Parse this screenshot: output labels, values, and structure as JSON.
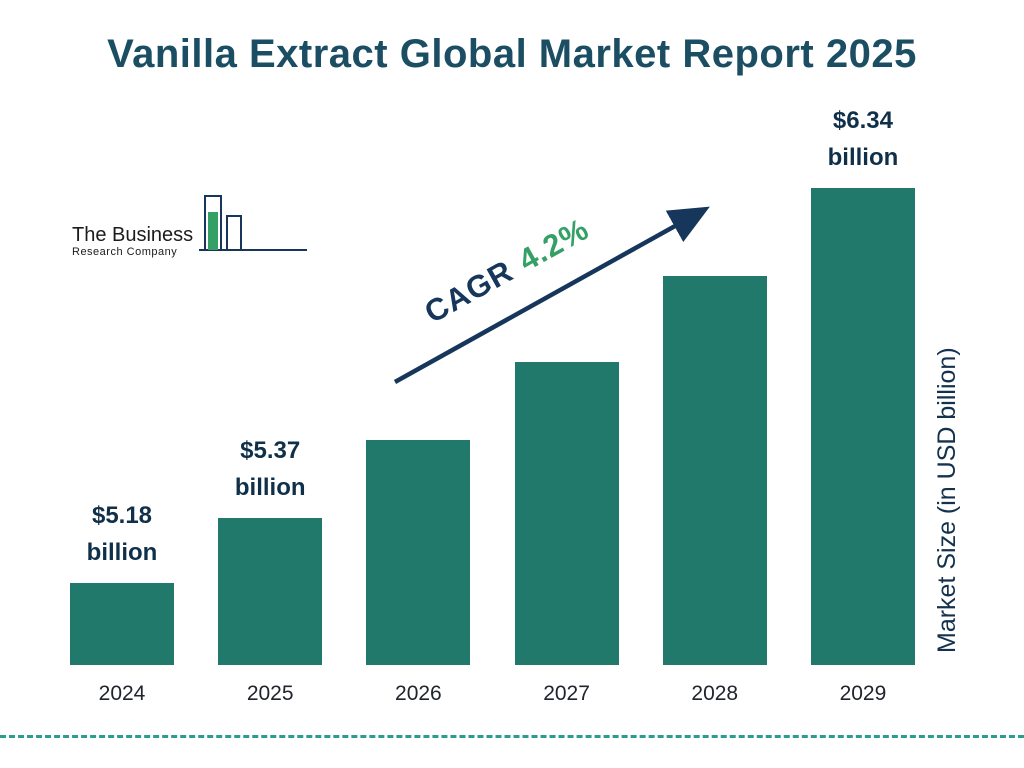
{
  "title": "Vanilla Extract Global Market Report 2025",
  "logo": {
    "line1": "The Business",
    "line2": "Research Company"
  },
  "cagr": {
    "prefix": "CAGR",
    "value": "4.2%"
  },
  "y_axis_label": "Market Size (in USD billion)",
  "chart_data": {
    "type": "bar",
    "title": "Vanilla Extract Global Market Report 2025",
    "categories": [
      "2024",
      "2025",
      "2026",
      "2027",
      "2028",
      "2029"
    ],
    "values": [
      5.18,
      5.37,
      5.6,
      5.83,
      6.08,
      6.34
    ],
    "bar_labels": {
      "2024": "$5.18 billion",
      "2025": "$5.37 billion",
      "2029": "$6.34 billion"
    },
    "annotation": "CAGR 4.2%",
    "xlabel": "",
    "ylabel": "Market Size (in USD billion)",
    "ylim": [
      4.94,
      6.4
    ],
    "legend": "none",
    "grid": false,
    "colors": {
      "bar": "#20796a",
      "title": "#1b4e63",
      "value_label": "#10304a",
      "cagr_prefix": "#16365c",
      "cagr_value": "#35a065",
      "arrow": "#16365c",
      "dashed_line": "#2a9d8f"
    }
  }
}
